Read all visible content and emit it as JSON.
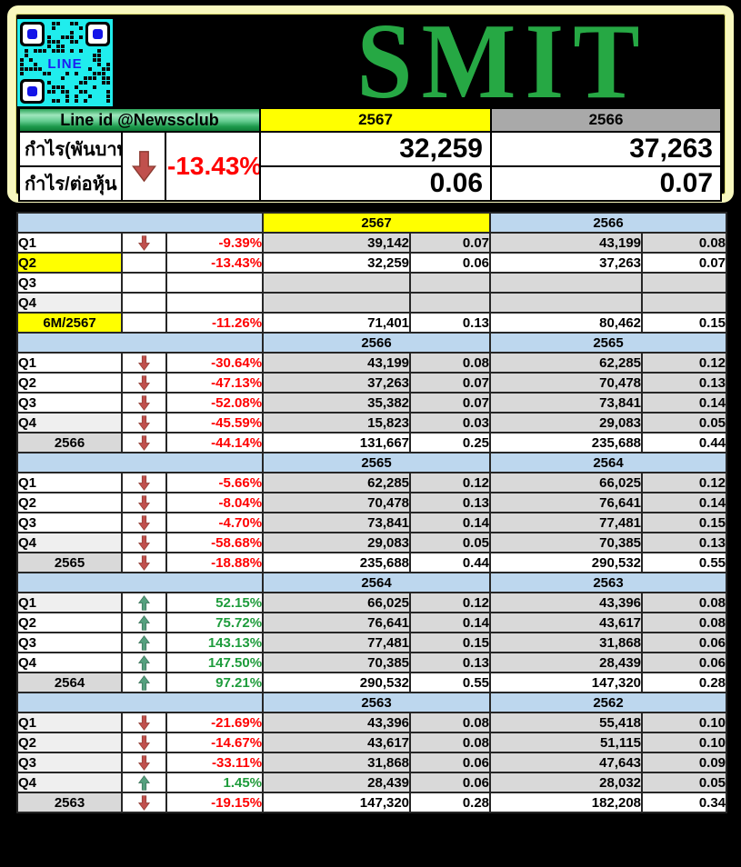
{
  "title": "SMIT",
  "qr": {
    "label": "LINE"
  },
  "summary": {
    "line_id": "Line id @Newssclub",
    "col_year1": "2567",
    "col_year2": "2566",
    "row1_label": "กำไร(พันบาท)",
    "row2_label": "กำไร/ต่อหุ้น",
    "change": "-13.43%",
    "direction": "down",
    "year1_profit": "32,259",
    "year1_eps": "0.06",
    "year2_profit": "37,263",
    "year2_eps": "0.07"
  },
  "colors": {
    "highlight_yellow": "#ffff00",
    "header_blue": "#bdd7ee",
    "cell_gray": "#d9d9d9",
    "negative_red": "#ff0000",
    "positive_green": "#1e9c3c",
    "down_arrow": "#c0504d",
    "up_arrow": "#55a07e",
    "title_green": "#26a844",
    "frame_yellow": "#f8f8be",
    "qr_cyan": "#20eded",
    "line_blue": "#1d1df2",
    "summary_year2_gray": "#a9a9a9"
  },
  "main_table": {
    "blocks": [
      {
        "year1": "2567",
        "year2": "2566",
        "year1_bg": "yellow",
        "year2_bg": "blue",
        "rows": [
          {
            "label": "Q1",
            "label_bg": "white",
            "arrow": "down",
            "pct": "-9.39%",
            "pct_color": "red",
            "v1": "39,142",
            "e1": "0.07",
            "v2": "43,199",
            "e2": "0.08",
            "data_bg": "gray",
            "total": false
          },
          {
            "label": "Q2",
            "label_bg": "yellow",
            "arrow": "",
            "pct": "-13.43%",
            "pct_color": "red",
            "v1": "32,259",
            "e1": "0.06",
            "v2": "37,263",
            "e2": "0.07",
            "data_bg": "white",
            "total": false
          },
          {
            "label": "Q3",
            "label_bg": "white",
            "arrow": "",
            "pct": "",
            "pct_color": "",
            "v1": "",
            "e1": "",
            "v2": "",
            "e2": "",
            "data_bg": "gray",
            "total": false
          },
          {
            "label": "Q4",
            "label_bg": "lightgray",
            "arrow": "",
            "pct": "",
            "pct_color": "",
            "v1": "",
            "e1": "",
            "v2": "",
            "e2": "",
            "data_bg": "gray",
            "total": false
          },
          {
            "label": "6M/2567",
            "label_bg": "yellow",
            "arrow": "",
            "pct": "-11.26%",
            "pct_color": "red",
            "v1": "71,401",
            "e1": "0.13",
            "v2": "80,462",
            "e2": "0.15",
            "data_bg": "white",
            "total": true
          }
        ]
      },
      {
        "year1": "2566",
        "year2": "2565",
        "year1_bg": "blue",
        "year2_bg": "blue",
        "rows": [
          {
            "label": "Q1",
            "label_bg": "white",
            "arrow": "down",
            "pct": "-30.64%",
            "pct_color": "red",
            "v1": "43,199",
            "e1": "0.08",
            "v2": "62,285",
            "e2": "0.12",
            "data_bg": "gray",
            "total": false
          },
          {
            "label": "Q2",
            "label_bg": "white",
            "arrow": "down",
            "pct": "-47.13%",
            "pct_color": "red",
            "v1": "37,263",
            "e1": "0.07",
            "v2": "70,478",
            "e2": "0.13",
            "data_bg": "gray",
            "total": false
          },
          {
            "label": "Q3",
            "label_bg": "white",
            "arrow": "down",
            "pct": "-52.08%",
            "pct_color": "red",
            "v1": "35,382",
            "e1": "0.07",
            "v2": "73,841",
            "e2": "0.14",
            "data_bg": "gray",
            "total": false
          },
          {
            "label": "Q4",
            "label_bg": "lightgray",
            "arrow": "down",
            "pct": "-45.59%",
            "pct_color": "red",
            "v1": "15,823",
            "e1": "0.03",
            "v2": "29,083",
            "e2": "0.05",
            "data_bg": "gray",
            "total": false
          },
          {
            "label": "2566",
            "label_bg": "gray",
            "arrow": "down",
            "pct": "-44.14%",
            "pct_color": "red",
            "v1": "131,667",
            "e1": "0.25",
            "v2": "235,688",
            "e2": "0.44",
            "data_bg": "white",
            "total": true
          }
        ]
      },
      {
        "year1": "2565",
        "year2": "2564",
        "year1_bg": "blue",
        "year2_bg": "blue",
        "rows": [
          {
            "label": "Q1",
            "label_bg": "white",
            "arrow": "down",
            "pct": "-5.66%",
            "pct_color": "red",
            "v1": "62,285",
            "e1": "0.12",
            "v2": "66,025",
            "e2": "0.12",
            "data_bg": "gray",
            "total": false
          },
          {
            "label": "Q2",
            "label_bg": "white",
            "arrow": "down",
            "pct": "-8.04%",
            "pct_color": "red",
            "v1": "70,478",
            "e1": "0.13",
            "v2": "76,641",
            "e2": "0.14",
            "data_bg": "gray",
            "total": false
          },
          {
            "label": "Q3",
            "label_bg": "white",
            "arrow": "down",
            "pct": "-4.70%",
            "pct_color": "red",
            "v1": "73,841",
            "e1": "0.14",
            "v2": "77,481",
            "e2": "0.15",
            "data_bg": "gray",
            "total": false
          },
          {
            "label": "Q4",
            "label_bg": "lightgray",
            "arrow": "down",
            "pct": "-58.68%",
            "pct_color": "red",
            "v1": "29,083",
            "e1": "0.05",
            "v2": "70,385",
            "e2": "0.13",
            "data_bg": "gray",
            "total": false
          },
          {
            "label": "2565",
            "label_bg": "gray",
            "arrow": "down",
            "pct": "-18.88%",
            "pct_color": "red",
            "v1": "235,688",
            "e1": "0.44",
            "v2": "290,532",
            "e2": "0.55",
            "data_bg": "white",
            "total": true
          }
        ]
      },
      {
        "year1": "2564",
        "year2": "2563",
        "year1_bg": "blue",
        "year2_bg": "blue",
        "rows": [
          {
            "label": "Q1",
            "label_bg": "lightgray",
            "arrow": "up",
            "pct": "52.15%",
            "pct_color": "green",
            "v1": "66,025",
            "e1": "0.12",
            "v2": "43,396",
            "e2": "0.08",
            "data_bg": "gray",
            "total": false
          },
          {
            "label": "Q2",
            "label_bg": "white",
            "arrow": "up",
            "pct": "75.72%",
            "pct_color": "green",
            "v1": "76,641",
            "e1": "0.14",
            "v2": "43,617",
            "e2": "0.08",
            "data_bg": "gray",
            "total": false
          },
          {
            "label": "Q3",
            "label_bg": "white",
            "arrow": "up",
            "pct": "143.13%",
            "pct_color": "green",
            "v1": "77,481",
            "e1": "0.15",
            "v2": "31,868",
            "e2": "0.06",
            "data_bg": "gray",
            "total": false
          },
          {
            "label": "Q4",
            "label_bg": "white",
            "arrow": "up",
            "pct": "147.50%",
            "pct_color": "green",
            "v1": "70,385",
            "e1": "0.13",
            "v2": "28,439",
            "e2": "0.06",
            "data_bg": "gray",
            "total": false
          },
          {
            "label": "2564",
            "label_bg": "gray",
            "arrow": "up",
            "pct": "97.21%",
            "pct_color": "green",
            "v1": "290,532",
            "e1": "0.55",
            "v2": "147,320",
            "e2": "0.28",
            "data_bg": "white",
            "total": true
          }
        ]
      },
      {
        "year1": "2563",
        "year2": "2562",
        "year1_bg": "blue",
        "year2_bg": "blue",
        "rows": [
          {
            "label": "Q1",
            "label_bg": "lightgray",
            "arrow": "down",
            "pct": "-21.69%",
            "pct_color": "red",
            "v1": "43,396",
            "e1": "0.08",
            "v2": "55,418",
            "e2": "0.10",
            "data_bg": "gray",
            "total": false
          },
          {
            "label": "Q2",
            "label_bg": "lightgray",
            "arrow": "down",
            "pct": "-14.67%",
            "pct_color": "red",
            "v1": "43,617",
            "e1": "0.08",
            "v2": "51,115",
            "e2": "0.10",
            "data_bg": "gray",
            "total": false
          },
          {
            "label": "Q3",
            "label_bg": "lightgray",
            "arrow": "down",
            "pct": "-33.11%",
            "pct_color": "red",
            "v1": "31,868",
            "e1": "0.06",
            "v2": "47,643",
            "e2": "0.09",
            "data_bg": "gray",
            "total": false
          },
          {
            "label": "Q4",
            "label_bg": "lightgray",
            "arrow": "up",
            "pct": "1.45%",
            "pct_color": "green",
            "v1": "28,439",
            "e1": "0.06",
            "v2": "28,032",
            "e2": "0.05",
            "data_bg": "gray",
            "total": false
          },
          {
            "label": "2563",
            "label_bg": "gray",
            "arrow": "down",
            "pct": "-19.15%",
            "pct_color": "red",
            "v1": "147,320",
            "e1": "0.28",
            "v2": "182,208",
            "e2": "0.34",
            "data_bg": "white",
            "total": true
          }
        ]
      }
    ]
  }
}
